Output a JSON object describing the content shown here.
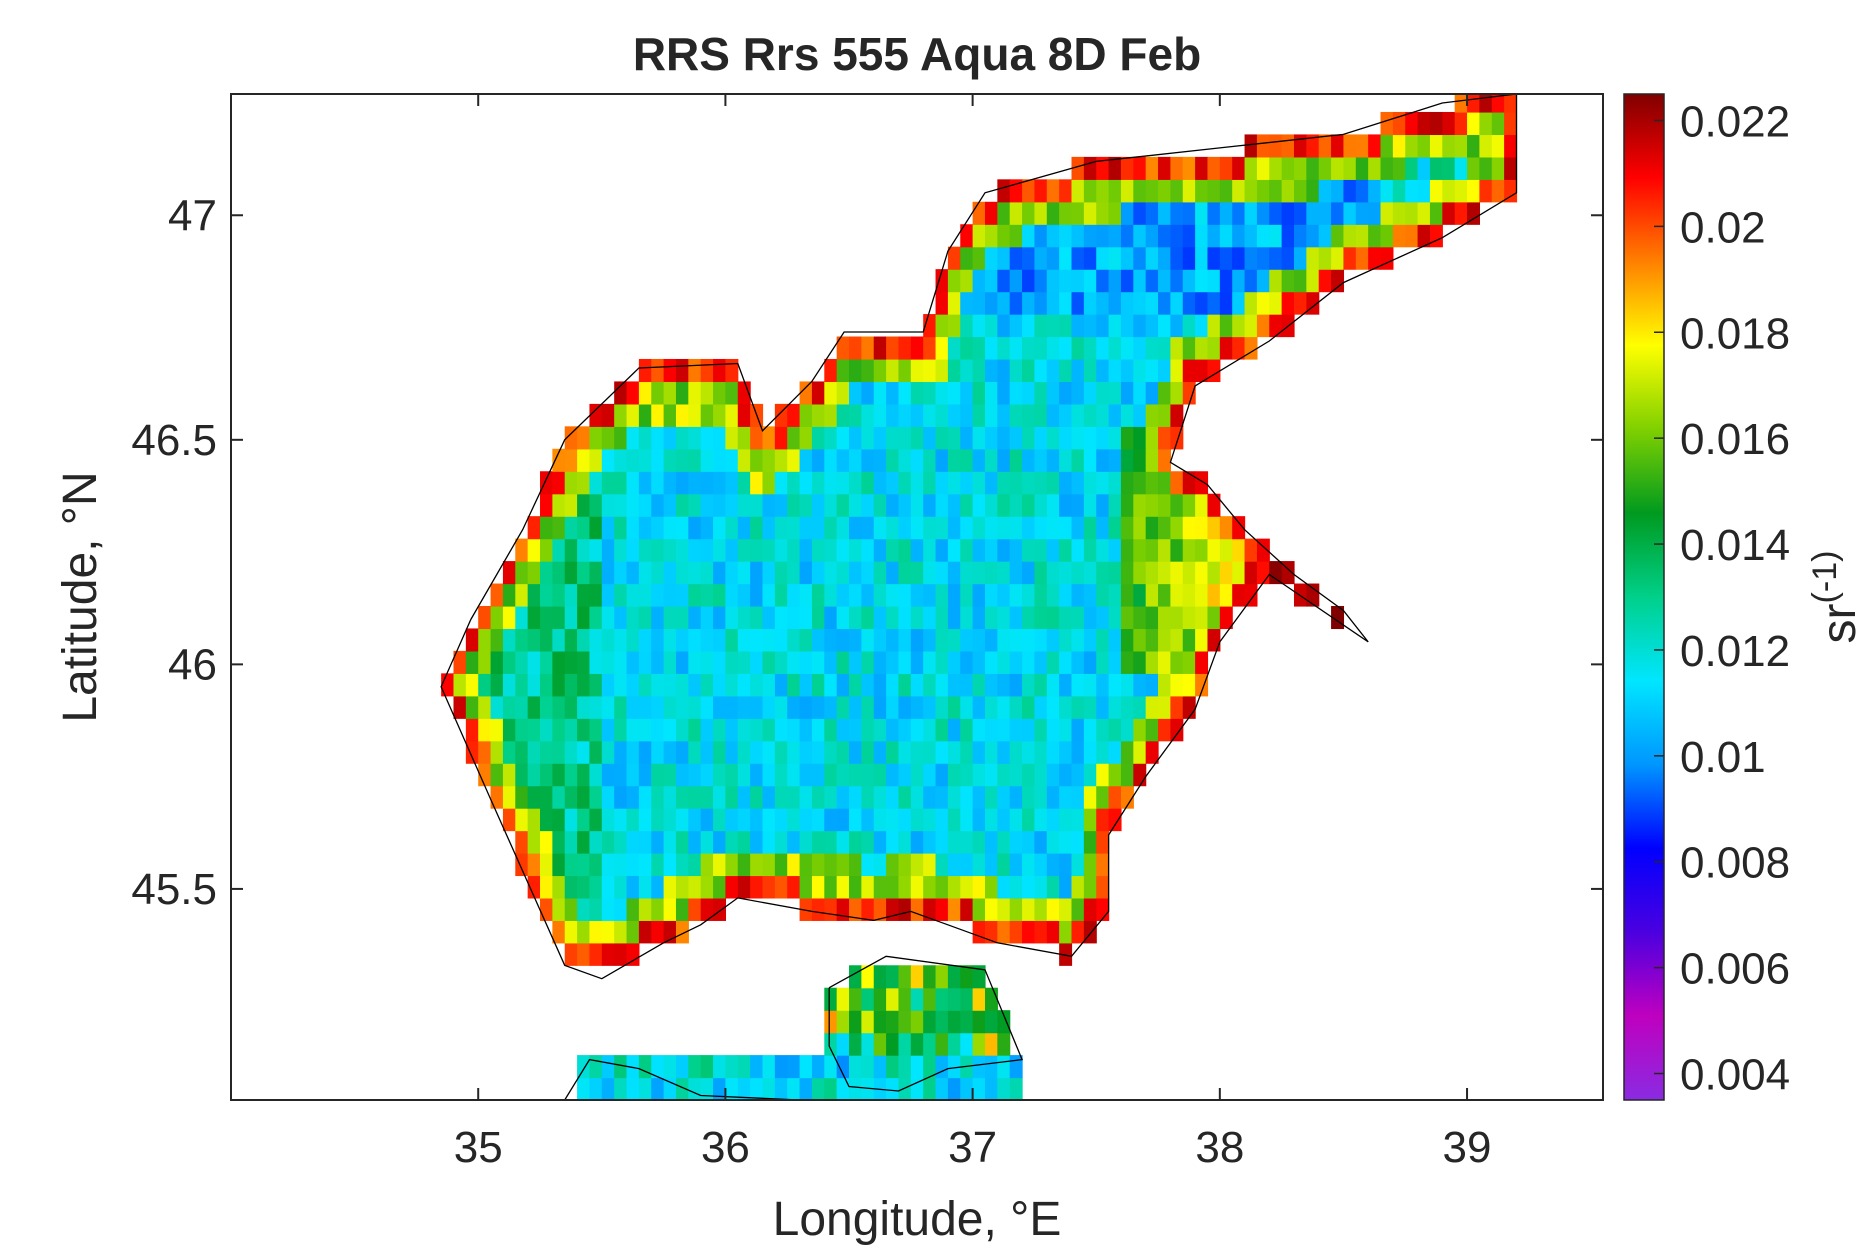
{
  "chart_data": {
    "type": "heatmap",
    "title": "RRS Rrs 555 Aqua 8D Feb",
    "xlabel": "Longitude, °E",
    "ylabel": "Latitude, °N",
    "xlim": [
      34.0,
      39.55
    ],
    "ylim": [
      45.03,
      47.27
    ],
    "x_ticks": [
      35,
      36,
      37,
      38,
      39
    ],
    "y_ticks": [
      45.5,
      46,
      46.5,
      47
    ],
    "x_tick_labels": [
      "35",
      "36",
      "37",
      "38",
      "39"
    ],
    "y_tick_labels": [
      "45.5",
      "46",
      "46.5",
      "47"
    ],
    "colorbar": {
      "label": "sr^(-1)",
      "range": [
        0.0035,
        0.0225
      ],
      "ticks": [
        0.004,
        0.006,
        0.008,
        0.01,
        0.012,
        0.014,
        0.016,
        0.018,
        0.02,
        0.022
      ],
      "tick_labels": [
        "0.004",
        "0.006",
        "0.008",
        "0.01",
        "0.012",
        "0.014",
        "0.016",
        "0.018",
        "0.02",
        "0.022"
      ],
      "colormap": [
        "#8a2be2",
        "#bf00bf",
        "#4b00e0",
        "#0000ff",
        "#0096ff",
        "#00e6ff",
        "#00d08a",
        "#009a1f",
        "#7fd000",
        "#ffff00",
        "#ff8000",
        "#ff0000",
        "#800000"
      ]
    },
    "field_summary": {
      "open_sea_center": 0.0115,
      "western_coast_band": 0.0165,
      "northeast_gulf": 0.0102,
      "eastern_coast": 0.0205,
      "shallow_coastal_extreme": 0.0225
    },
    "grid": false,
    "coastline_color": "#000000"
  }
}
